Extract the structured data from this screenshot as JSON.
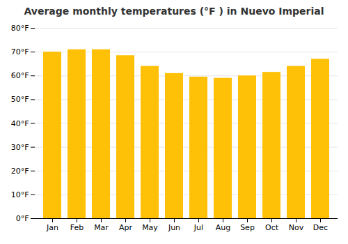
{
  "chart_data": {
    "type": "bar",
    "title": "Average monthly temperatures (°F ) in Nuevo Imperial",
    "categories": [
      "Jan",
      "Feb",
      "Mar",
      "Apr",
      "May",
      "Jun",
      "Jul",
      "Aug",
      "Sep",
      "Oct",
      "Nov",
      "Dec"
    ],
    "values": [
      70,
      71,
      71,
      68.5,
      64,
      61,
      59.5,
      59,
      60,
      61.5,
      64,
      67
    ],
    "color": "#FFC107",
    "ylim": [
      0,
      80
    ],
    "yticks": [
      {
        "value": 0,
        "label": "0°F"
      },
      {
        "value": 10,
        "label": "10°F"
      },
      {
        "value": 20,
        "label": "20°F"
      },
      {
        "value": 30,
        "label": "30°F"
      },
      {
        "value": 40,
        "label": "40°F"
      },
      {
        "value": 50,
        "label": "50°F"
      },
      {
        "value": 60,
        "label": "60°F"
      },
      {
        "value": 70,
        "label": "70°F"
      },
      {
        "value": 80,
        "label": "80°F"
      }
    ],
    "grid": true
  }
}
